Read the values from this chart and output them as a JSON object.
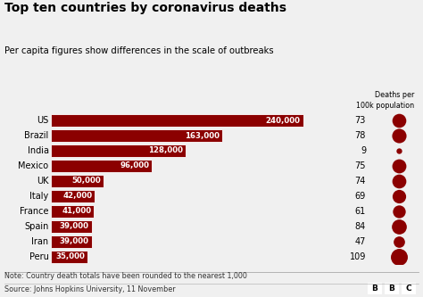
{
  "title": "Top ten countries by coronavirus deaths",
  "subtitle": "Per capita figures show differences in the scale of outbreaks",
  "note": "Note: Country death totals have been rounded to the nearest 1,000",
  "source": "Source: Johns Hopkins University, 11 November",
  "countries": [
    "US",
    "Brazil",
    "India",
    "Mexico",
    "UK",
    "Italy",
    "France",
    "Spain",
    "Iran",
    "Peru"
  ],
  "deaths": [
    240000,
    163000,
    128000,
    96000,
    50000,
    42000,
    41000,
    39000,
    39000,
    35000
  ],
  "deaths_labels": [
    "240,000",
    "163,000",
    "128,000",
    "96,000",
    "50,000",
    "42,000",
    "41,000",
    "39,000",
    "39,000",
    "35,000"
  ],
  "per_capita": [
    73,
    78,
    9,
    75,
    74,
    69,
    61,
    84,
    47,
    109
  ],
  "bar_color": "#8B0000",
  "dot_color": "#8B0000",
  "bg_color": "#f0f0f0",
  "text_color": "#000000",
  "dot_column_header": "Deaths per\n100k population",
  "xlim": [
    0,
    260000
  ],
  "dot_max_size": 180,
  "dot_min_size": 6
}
